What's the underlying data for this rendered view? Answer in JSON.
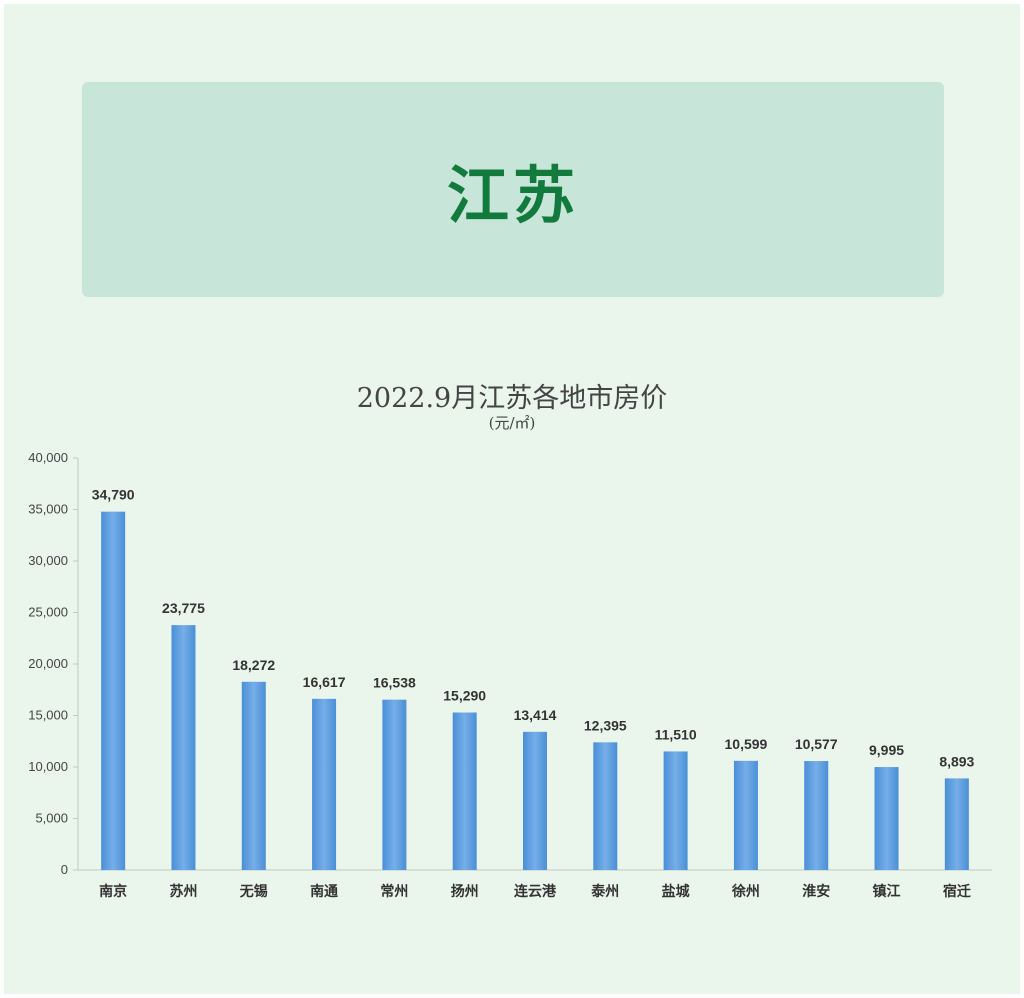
{
  "banner": {
    "title": "江苏"
  },
  "colors": {
    "bar": "#4a8fd6",
    "bar_light": "#76aee8",
    "axis": "#bfc8c4",
    "text": "#333333",
    "banner_bg": "#c7e5d8",
    "banner_text": "#127a3c"
  },
  "chart_data": {
    "type": "bar",
    "title": "2022.9月江苏各地市房价",
    "subtitle": "(元/㎡)",
    "categories": [
      "南京",
      "苏州",
      "无锡",
      "南通",
      "常州",
      "扬州",
      "连云港",
      "泰州",
      "盐城",
      "徐州",
      "淮安",
      "镇江",
      "宿迁"
    ],
    "values": [
      34790,
      23775,
      18272,
      16617,
      16538,
      15290,
      13414,
      12395,
      11510,
      10599,
      10577,
      9995,
      8893
    ],
    "data_labels": [
      "34,790",
      "23,775",
      "18,272",
      "16,617",
      "16,538",
      "15,290",
      "13,414",
      "12,395",
      "11,510",
      "10,599",
      "10,577",
      "9,995",
      "8,893"
    ],
    "ylim": [
      0,
      40000
    ],
    "yticks": [
      0,
      5000,
      10000,
      15000,
      20000,
      25000,
      30000,
      35000,
      40000
    ],
    "ytick_labels": [
      "0",
      "5,000",
      "10,000",
      "15,000",
      "20,000",
      "25,000",
      "30,000",
      "35,000",
      "40,000"
    ],
    "grid": false,
    "legend": "none"
  }
}
